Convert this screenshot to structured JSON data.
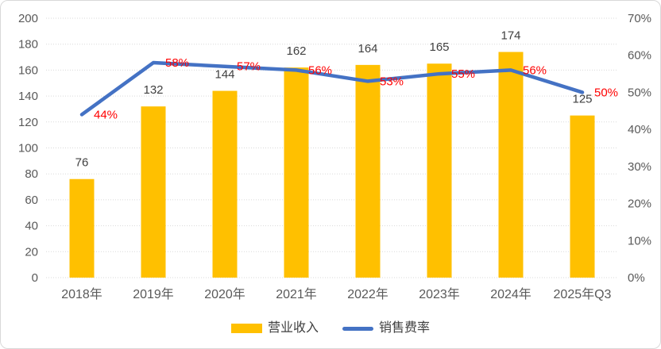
{
  "chart_data": {
    "type": "combo-bar-line",
    "title": "",
    "categories": [
      "2018年",
      "2019年",
      "2020年",
      "2021年",
      "2022年",
      "2023年",
      "2024年",
      "2025年Q3"
    ],
    "series": [
      {
        "name": "营业收入",
        "type": "bar",
        "axis": "left",
        "values": [
          76,
          132,
          144,
          162,
          164,
          165,
          174,
          125
        ],
        "labels": [
          "76",
          "132",
          "144",
          "162",
          "164",
          "165",
          "174",
          "125"
        ],
        "color": "#FFC000",
        "label_color": "#404040"
      },
      {
        "name": "销售费率",
        "type": "line",
        "axis": "right",
        "values": [
          44,
          58,
          57,
          56,
          53,
          55,
          56,
          50
        ],
        "labels": [
          "44%",
          "58%",
          "57%",
          "56%",
          "53%",
          "55%",
          "56%",
          "50%"
        ],
        "color": "#4472C4",
        "label_color": "#FF0000"
      }
    ],
    "left_axis": {
      "min": 0,
      "max": 200,
      "step": 20,
      "tick_labels": [
        "0",
        "20",
        "40",
        "60",
        "80",
        "100",
        "120",
        "140",
        "160",
        "180",
        "200"
      ]
    },
    "right_axis": {
      "min": 0,
      "max": 70,
      "step": 10,
      "tick_labels": [
        "0%",
        "10%",
        "20%",
        "30%",
        "40%",
        "50%",
        "60%",
        "70%"
      ]
    },
    "grid": true,
    "grid_color": "#D9D9D9",
    "axis_label_color": "#595959",
    "legend_position": "bottom",
    "background": "#FFFFFF"
  }
}
